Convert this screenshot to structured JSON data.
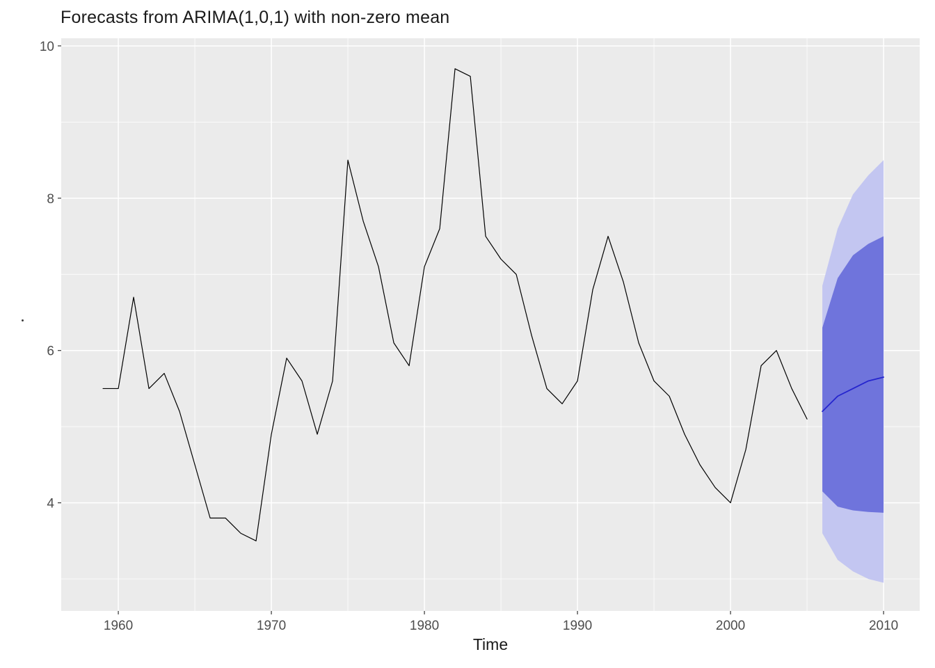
{
  "chart_data": {
    "type": "line",
    "title": "Forecasts from ARIMA(1,0,1) with non-zero mean",
    "xlabel": "Time",
    "ylabel": "",
    "xlim": [
      1956.27,
      2012.36
    ],
    "ylim": [
      2.58,
      10.1
    ],
    "x_ticks": [
      1960,
      1970,
      1980,
      1990,
      2000,
      2010
    ],
    "y_ticks": [
      4,
      6,
      8,
      10
    ],
    "x_minor": [
      1965,
      1975,
      1985,
      1995,
      2005
    ],
    "y_minor": [
      3,
      5,
      7,
      9
    ],
    "grid": true,
    "legend": "none",
    "series": [
      {
        "name": "observed",
        "color": "#000000",
        "stroke_width": 1.2,
        "x": [
          1959,
          1960,
          1961,
          1962,
          1963,
          1964,
          1965,
          1966,
          1967,
          1968,
          1969,
          1970,
          1971,
          1972,
          1973,
          1974,
          1975,
          1976,
          1977,
          1978,
          1979,
          1980,
          1981,
          1982,
          1983,
          1984,
          1985,
          1986,
          1987,
          1988,
          1989,
          1990,
          1991,
          1992,
          1993,
          1994,
          1995,
          1996,
          1997,
          1998,
          1999,
          2000,
          2001,
          2002,
          2003,
          2004,
          2005
        ],
        "values": [
          5.5,
          5.5,
          6.7,
          5.5,
          5.7,
          5.2,
          4.5,
          3.8,
          3.8,
          3.6,
          3.5,
          4.9,
          5.9,
          5.6,
          4.9,
          5.6,
          8.5,
          7.7,
          7.1,
          6.1,
          5.8,
          7.1,
          7.6,
          9.7,
          9.6,
          7.5,
          7.2,
          7.0,
          6.2,
          5.5,
          5.3,
          5.6,
          6.8,
          7.5,
          6.9,
          6.1,
          5.6,
          5.4,
          4.9,
          4.5,
          4.2,
          4.0,
          4.7,
          5.8,
          6.0,
          5.5,
          5.1
        ]
      },
      {
        "name": "forecast-mean",
        "color": "#2525CE",
        "stroke_width": 1.8,
        "x": [
          2006,
          2007,
          2008,
          2009,
          2010
        ],
        "values": [
          5.2,
          5.4,
          5.5,
          5.6,
          5.65
        ]
      }
    ],
    "intervals": [
      {
        "level": 95,
        "fill": "#C3C6F1",
        "x": [
          2006,
          2007,
          2008,
          2009,
          2010
        ],
        "lower": [
          3.6,
          3.25,
          3.1,
          3.0,
          2.95
        ],
        "upper": [
          6.85,
          7.6,
          8.05,
          8.3,
          8.5
        ]
      },
      {
        "level": 80,
        "fill": "#6F74DC",
        "x": [
          2006,
          2007,
          2008,
          2009,
          2010
        ],
        "lower": [
          4.15,
          3.95,
          3.9,
          3.88,
          3.87
        ],
        "upper": [
          6.3,
          6.95,
          7.25,
          7.4,
          7.5
        ]
      }
    ],
    "colors": {
      "panel_bg": "#EBEBEB",
      "grid_major": "#FFFFFF",
      "grid_minor": "#FFFFFF",
      "tick_mark": "#333333",
      "tick_text": "#4D4D4D",
      "title_text": "#1a1a1a"
    }
  }
}
